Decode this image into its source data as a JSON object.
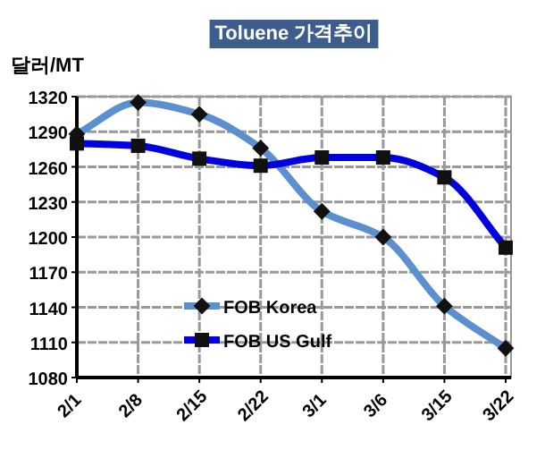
{
  "chart_data": {
    "type": "line",
    "title": "Toluene 가격추이",
    "ylabel": "달러/MT",
    "categories": [
      "2/1",
      "2/8",
      "2/15",
      "2/22",
      "3/1",
      "3/6",
      "3/15",
      "3/22"
    ],
    "series": [
      {
        "name": "FOB Korea",
        "color": "#5b8fd0",
        "marker": "diamond",
        "values": [
          1288,
          1315,
          1305,
          1276,
          1222,
          1200,
          1141,
          1105
        ]
      },
      {
        "name": "FOB US Gulf",
        "color": "#0000e0",
        "marker": "square",
        "values": [
          1280,
          1278,
          1267,
          1261,
          1268,
          1268,
          1251,
          1191
        ]
      }
    ],
    "ylim": [
      1080,
      1320
    ],
    "yticks": [
      1080,
      1110,
      1140,
      1170,
      1200,
      1230,
      1260,
      1290,
      1320
    ],
    "grid": true,
    "legend": "bottom"
  }
}
